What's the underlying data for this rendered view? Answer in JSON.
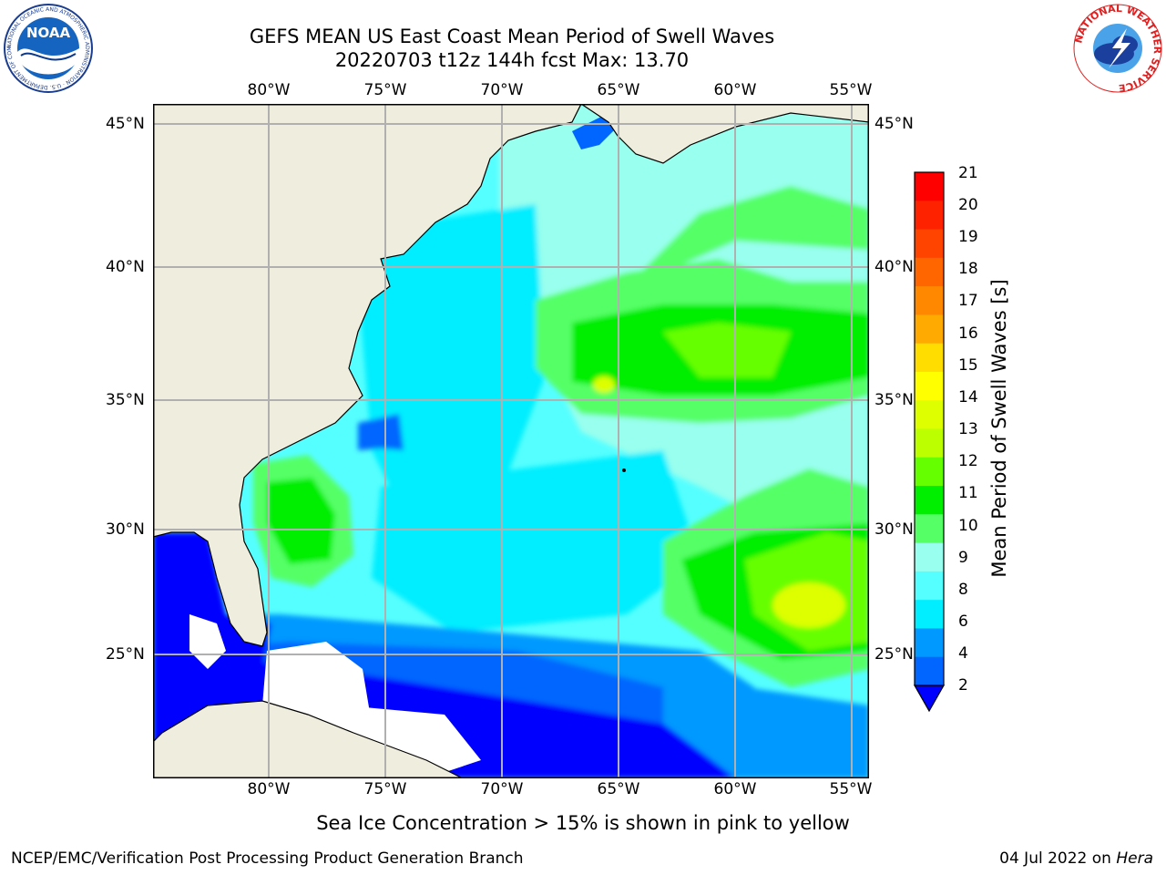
{
  "title": {
    "line1": "GEFS MEAN US East Coast Mean Period of Swell Waves",
    "line2": "20220703 t12z 144h fcst   Max: 13.70"
  },
  "logos": {
    "left": {
      "text": "NOAA",
      "ring_text": "NATIONAL OCEANIC AND ATMOSPHERIC ADMINISTRATION · U.S. DEPARTMENT OF COMMERCE",
      "icon": "noaa-logo"
    },
    "right": {
      "ring_text": "NATIONAL WEATHER SERVICE",
      "icon": "nws-logo"
    }
  },
  "map": {
    "lon_ticks": [
      "80°W",
      "75°W",
      "70°W",
      "65°W",
      "60°W",
      "55°W"
    ],
    "lat_ticks": [
      "45°N",
      "40°N",
      "35°N",
      "30°N",
      "25°N"
    ],
    "colors": {
      "land": "#efedde",
      "coast": "#000000",
      "grid": "#b0b0b0",
      "masked": "#ffffff"
    }
  },
  "colorbar": {
    "label": "Mean Period of Swell Waves [s]",
    "ticks": [
      "21",
      "20",
      "19",
      "18",
      "17",
      "16",
      "15",
      "14",
      "13",
      "12",
      "11",
      "10",
      "9",
      "8",
      "6",
      "4",
      "2"
    ],
    "below_color": "#0000ff",
    "segments": [
      "#ff0000",
      "#ff2200",
      "#ff4400",
      "#ff6600",
      "#ff8800",
      "#ffaa00",
      "#ffdd00",
      "#ffff00",
      "#ddff00",
      "#bbff00",
      "#66ff00",
      "#00ee00",
      "#55ff66",
      "#99ffee",
      "#55ffff",
      "#00eeff",
      "#0099ff",
      "#0066ff"
    ]
  },
  "note": "Sea Ice Concentration > 15% is shown in pink to yellow",
  "footer": {
    "left": "NCEP/EMC/Verification Post Processing Product Generation Branch",
    "date": "04 Jul 2022 on",
    "host": "Hera"
  }
}
